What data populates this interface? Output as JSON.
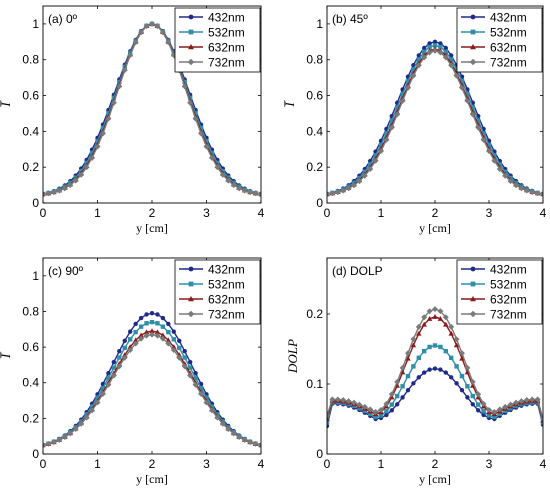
{
  "colors": {
    "432nm": "#1f2a8a",
    "532nm": "#2f8fa8",
    "632nm": "#8b1a1a",
    "732nm": "#7a7a7a"
  },
  "marker_shapes": [
    "circle",
    "square",
    "triangle",
    "diamond"
  ],
  "chart_data": [
    {
      "type": "line",
      "panel_label": "(a) 0º",
      "xlabel": "y [cm]",
      "ylabel": "I̅",
      "xlim": [
        0,
        4
      ],
      "ylim": [
        0,
        1.1
      ],
      "xticks": [
        0,
        1,
        2,
        3,
        4
      ],
      "yticks": [
        0,
        0.2,
        0.4,
        0.6,
        0.8,
        1
      ],
      "ytick_labels": [
        "0",
        "0.2",
        "0.4",
        "0.6",
        "0.8",
        "1"
      ],
      "legend_position": "top-right",
      "series": [
        {
          "name": "432nm",
          "peak": 1.0,
          "base": 0.05,
          "width": 0.68
        },
        {
          "name": "532nm",
          "peak": 1.0,
          "base": 0.05,
          "width": 0.66
        },
        {
          "name": "632nm",
          "peak": 1.0,
          "base": 0.05,
          "width": 0.64
        },
        {
          "name": "732nm",
          "peak": 1.0,
          "base": 0.05,
          "width": 0.63
        }
      ]
    },
    {
      "type": "line",
      "panel_label": "(b) 45º",
      "xlabel": "y [cm]",
      "ylabel": "I̅",
      "xlim": [
        0,
        4
      ],
      "ylim": [
        0,
        1.1
      ],
      "xticks": [
        0,
        1,
        2,
        3,
        4
      ],
      "yticks": [
        0,
        0.2,
        0.4,
        0.6,
        0.8,
        1
      ],
      "ytick_labels": [
        "0",
        "0.2",
        "0.4",
        "0.6",
        "0.8",
        "1"
      ],
      "legend_position": "top-right",
      "series": [
        {
          "name": "432nm",
          "peak": 0.9,
          "base": 0.05,
          "width": 0.7
        },
        {
          "name": "532nm",
          "peak": 0.88,
          "base": 0.05,
          "width": 0.68
        },
        {
          "name": "632nm",
          "peak": 0.86,
          "base": 0.05,
          "width": 0.66
        },
        {
          "name": "732nm",
          "peak": 0.85,
          "base": 0.05,
          "width": 0.65
        }
      ]
    },
    {
      "type": "line",
      "panel_label": "(c) 90º",
      "xlabel": "y [cm]",
      "ylabel": "I̅",
      "xlim": [
        0,
        4
      ],
      "ylim": [
        0,
        1.1
      ],
      "xticks": [
        0,
        1,
        2,
        3,
        4
      ],
      "yticks": [
        0,
        0.2,
        0.4,
        0.6,
        0.8,
        1
      ],
      "ytick_labels": [
        "0",
        "0.2",
        "0.4",
        "0.6",
        "0.8",
        "1"
      ],
      "legend_position": "top-right",
      "series": [
        {
          "name": "432nm",
          "peak": 0.79,
          "base": 0.05,
          "width": 0.74
        },
        {
          "name": "532nm",
          "peak": 0.74,
          "base": 0.05,
          "width": 0.74
        },
        {
          "name": "632nm",
          "peak": 0.69,
          "base": 0.05,
          "width": 0.74
        },
        {
          "name": "732nm",
          "peak": 0.67,
          "base": 0.05,
          "width": 0.74
        }
      ]
    },
    {
      "type": "line",
      "panel_label": "(d) DOLP",
      "xlabel": "y [cm]",
      "ylabel": "DOLP",
      "xlim": [
        0,
        4
      ],
      "ylim": [
        0,
        0.28
      ],
      "xticks": [
        0,
        1,
        2,
        3,
        4
      ],
      "yticks": [
        0,
        0.1,
        0.2
      ],
      "ytick_labels": [
        "0",
        "0.1",
        "0.2"
      ],
      "legend_position": "top-right",
      "series": [
        {
          "name": "432nm",
          "peak": 0.122,
          "trough": 0.05,
          "edge": 0.072,
          "start": 0.04,
          "end": 0.042
        },
        {
          "name": "532nm",
          "peak": 0.155,
          "trough": 0.053,
          "edge": 0.074,
          "start": 0.045,
          "end": 0.045
        },
        {
          "name": "632nm",
          "peak": 0.196,
          "trough": 0.057,
          "edge": 0.076,
          "start": 0.05,
          "end": 0.048
        },
        {
          "name": "732nm",
          "peak": 0.207,
          "trough": 0.06,
          "edge": 0.078,
          "start": 0.055,
          "end": 0.05
        }
      ]
    }
  ]
}
